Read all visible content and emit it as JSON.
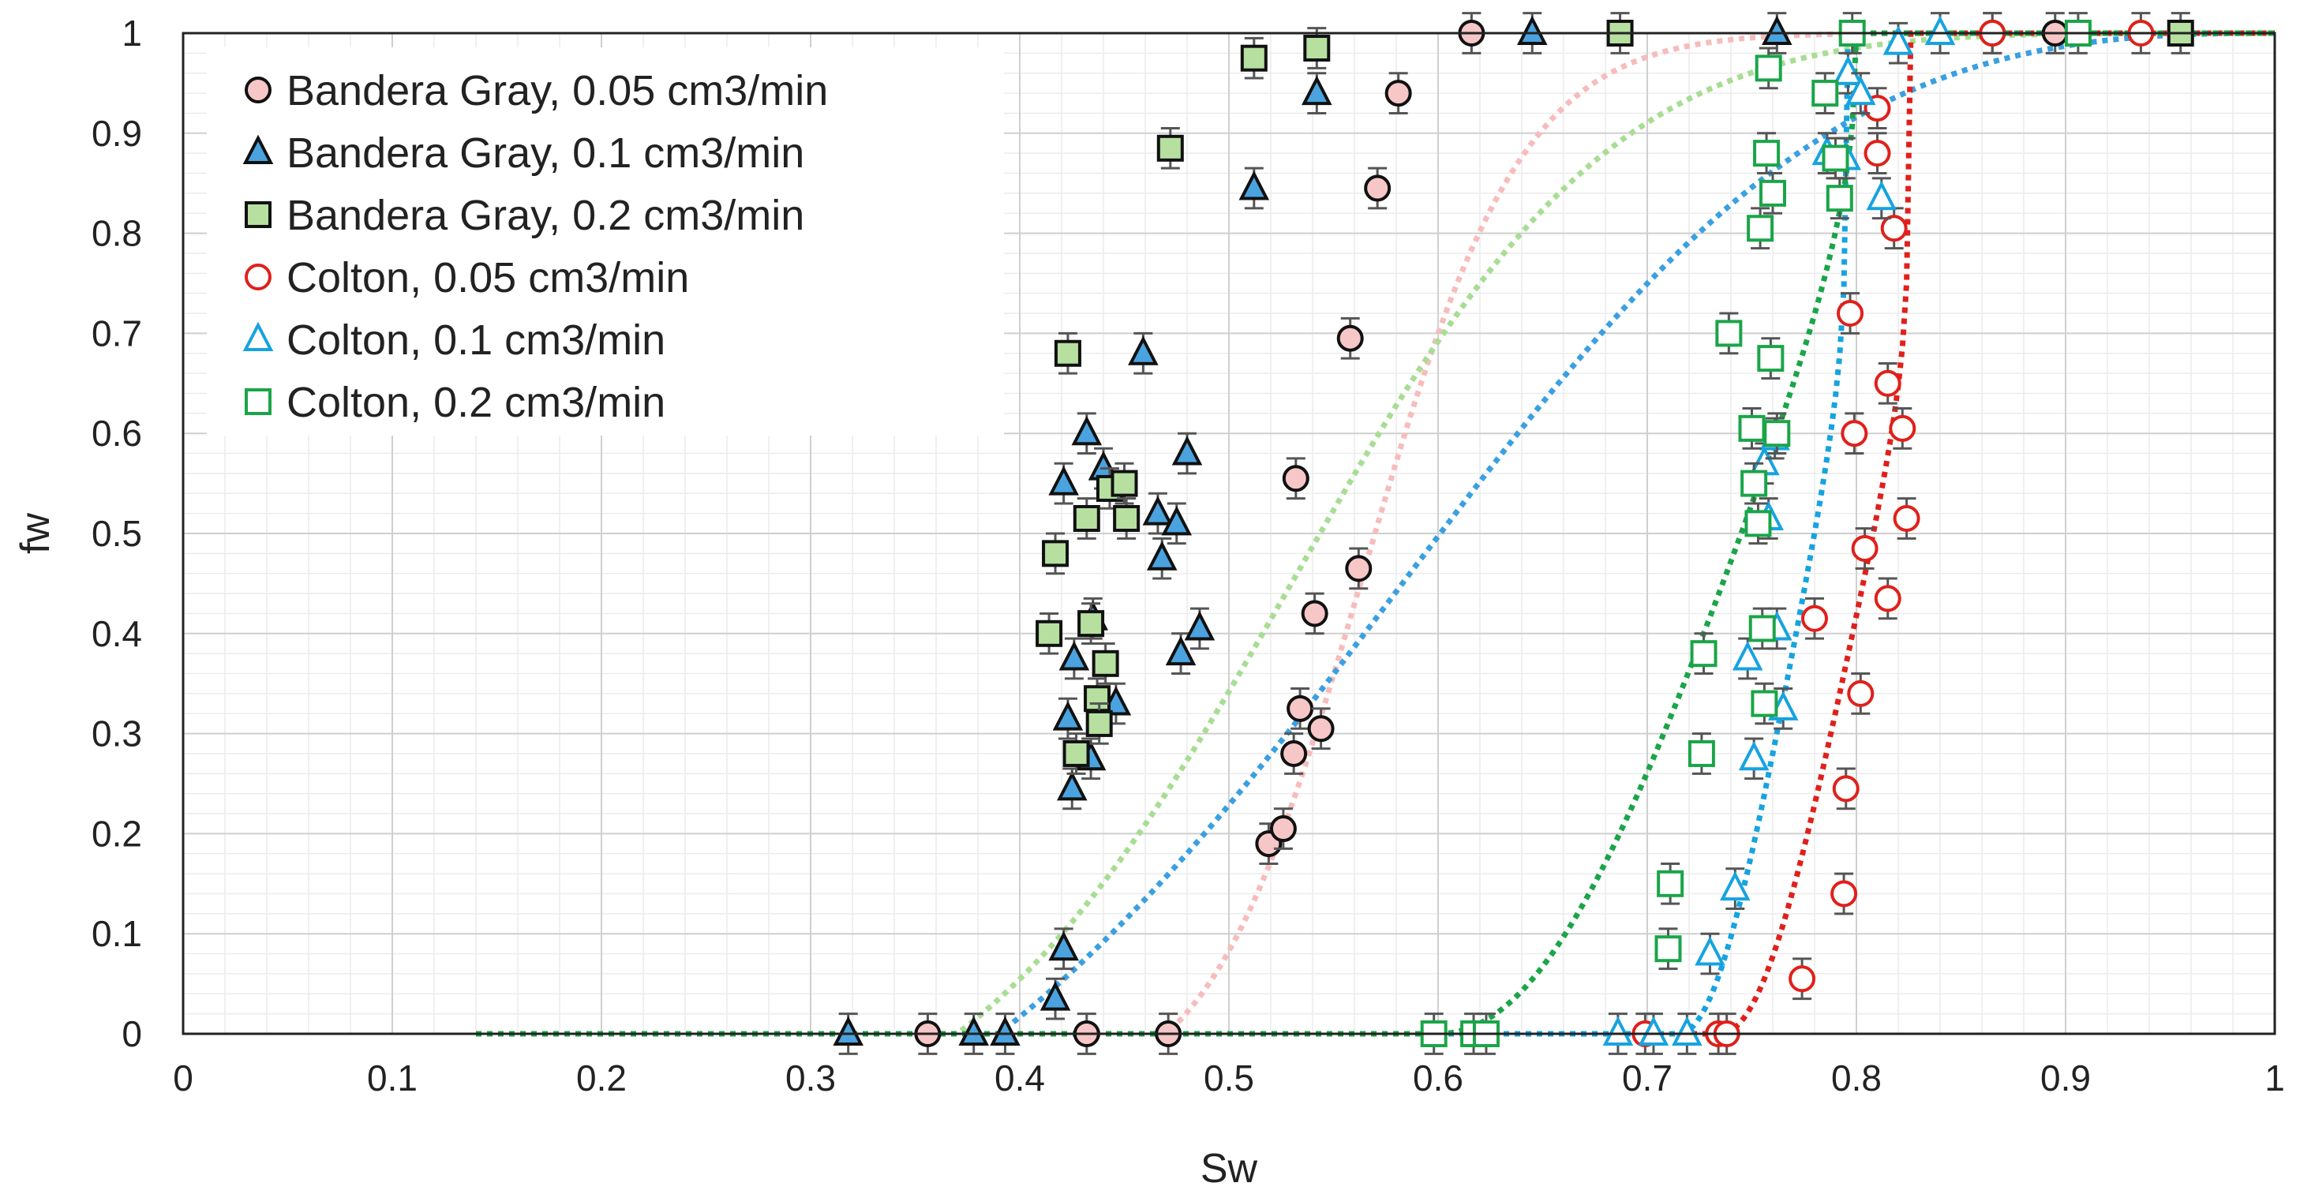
{
  "chart_data": {
    "type": "scatter",
    "title": "",
    "xlabel": "Sw",
    "ylabel": "fw",
    "xlim": [
      0,
      1
    ],
    "ylim": [
      0,
      1
    ],
    "xticks": [
      "0",
      "0.1",
      "0.2",
      "0.3",
      "0.4",
      "0.5",
      "0.6",
      "0.7",
      "0.8",
      "0.9",
      "1"
    ],
    "yticks": [
      "0",
      "0.1",
      "0.2",
      "0.3",
      "0.4",
      "0.5",
      "0.6",
      "0.7",
      "0.8",
      "0.9",
      "1"
    ],
    "grid": true,
    "legend_position": "top-left",
    "error_bar": 0.02,
    "series": [
      {
        "name": "Bandera Gray, 0.05 cm3/min",
        "marker": "circle",
        "filled": true,
        "fill": "#f7c6c6",
        "stroke": "#111111",
        "fit_color": "#f7bcbc",
        "fit": {
          "swr": 0.47,
          "sor": 0.0,
          "nw": 1.0,
          "no": 8.0
        },
        "x": [
          0.356,
          0.432,
          0.471,
          0.519,
          0.526,
          0.531,
          0.534,
          0.532,
          0.541,
          0.544,
          0.562,
          0.558,
          0.571,
          0.581,
          0.616,
          0.865,
          0.895
        ],
        "y": [
          0.0,
          0.0,
          0.0,
          0.19,
          0.205,
          0.28,
          0.325,
          0.555,
          0.42,
          0.305,
          0.465,
          0.695,
          0.845,
          0.94,
          1.0,
          1.0,
          1.0
        ]
      },
      {
        "name": "Bandera Gray, 0.1 cm3/min",
        "marker": "triangle",
        "filled": true,
        "fill": "#4aa3df",
        "stroke": "#111111",
        "fit_color": "#3aa0e0",
        "fit": {
          "swr": 0.39,
          "sor": 0.0,
          "nw": 1.0,
          "no": 2.5
        },
        "x": [
          0.318,
          0.378,
          0.393,
          0.417,
          0.421,
          0.423,
          0.421,
          0.425,
          0.426,
          0.432,
          0.434,
          0.435,
          0.44,
          0.446,
          0.459,
          0.466,
          0.468,
          0.477,
          0.475,
          0.48,
          0.486,
          0.512,
          0.542,
          0.645,
          0.762
        ],
        "y": [
          0.0,
          0.0,
          0.0,
          0.035,
          0.085,
          0.315,
          0.55,
          0.245,
          0.375,
          0.6,
          0.275,
          0.415,
          0.565,
          0.33,
          0.68,
          0.52,
          0.475,
          0.38,
          0.51,
          0.58,
          0.405,
          0.845,
          0.94,
          1.0,
          1.0
        ]
      },
      {
        "name": "Bandera Gray, 0.2 cm3/min",
        "marker": "square",
        "filled": true,
        "fill": "#b6dfa0",
        "stroke": "#111111",
        "fit_color": "#a8dd94",
        "fit": {
          "swr": 0.37,
          "sor": 0.0,
          "nw": 1.0,
          "no": 4.0
        },
        "x": [
          0.414,
          0.417,
          0.423,
          0.427,
          0.432,
          0.434,
          0.437,
          0.438,
          0.441,
          0.443,
          0.45,
          0.451,
          0.472,
          0.512,
          0.542,
          0.687,
          0.955
        ],
        "y": [
          0.4,
          0.48,
          0.68,
          0.28,
          0.515,
          0.41,
          0.335,
          0.31,
          0.37,
          0.545,
          0.55,
          0.515,
          0.885,
          0.975,
          0.985,
          1.0,
          1.0
        ]
      },
      {
        "name": "Colton, 0.05 cm3/min",
        "marker": "circle",
        "filled": false,
        "fill": "none",
        "stroke": "#e0201a",
        "fit_color": "#e0201a",
        "fit": {
          "swr": 0.735,
          "sor": 0.175,
          "nw": 2.0,
          "no": 0.25
        },
        "x": [
          0.699,
          0.734,
          0.738,
          0.774,
          0.78,
          0.794,
          0.795,
          0.797,
          0.799,
          0.802,
          0.804,
          0.81,
          0.81,
          0.815,
          0.815,
          0.818,
          0.822,
          0.824,
          0.936,
          0.865
        ],
        "y": [
          0.0,
          0.0,
          0.0,
          0.055,
          0.415,
          0.14,
          0.245,
          0.72,
          0.6,
          0.34,
          0.485,
          0.88,
          0.925,
          0.435,
          0.65,
          0.805,
          0.605,
          0.515,
          1.0,
          1.0
        ]
      },
      {
        "name": "Colton, 0.1 cm3/min",
        "marker": "triangle",
        "filled": false,
        "fill": "none",
        "stroke": "#16a3e0",
        "fit_color": "#16a3e0",
        "fit": {
          "swr": 0.715,
          "sor": 0.205,
          "nw": 2.0,
          "no": 0.25
        },
        "x": [
          0.686,
          0.703,
          0.719,
          0.73,
          0.742,
          0.748,
          0.751,
          0.756,
          0.758,
          0.761,
          0.762,
          0.765,
          0.786,
          0.796,
          0.795,
          0.802,
          0.812,
          0.82,
          0.84
        ],
        "y": [
          0.0,
          0.0,
          0.0,
          0.08,
          0.145,
          0.375,
          0.275,
          0.57,
          0.515,
          0.595,
          0.405,
          0.325,
          0.88,
          0.96,
          0.875,
          0.94,
          0.835,
          0.99,
          1.0
        ]
      },
      {
        "name": "Colton, 0.2 cm3/min",
        "marker": "square",
        "filled": false,
        "fill": "none",
        "stroke": "#1aa548",
        "fit_color": "#1aa548",
        "fit": {
          "swr": 0.6,
          "sor": 0.2,
          "nw": 2.0,
          "no": 0.5
        },
        "x": [
          0.598,
          0.617,
          0.623,
          0.71,
          0.711,
          0.726,
          0.727,
          0.739,
          0.75,
          0.751,
          0.753,
          0.754,
          0.755,
          0.756,
          0.757,
          0.758,
          0.759,
          0.76,
          0.762,
          0.785,
          0.79,
          0.792,
          0.798,
          0.906
        ],
        "y": [
          0.0,
          0.0,
          0.0,
          0.085,
          0.15,
          0.28,
          0.38,
          0.7,
          0.605,
          0.55,
          0.51,
          0.805,
          0.405,
          0.33,
          0.88,
          0.965,
          0.675,
          0.84,
          0.6,
          0.94,
          0.875,
          0.835,
          1.0,
          1.0
        ]
      }
    ]
  }
}
